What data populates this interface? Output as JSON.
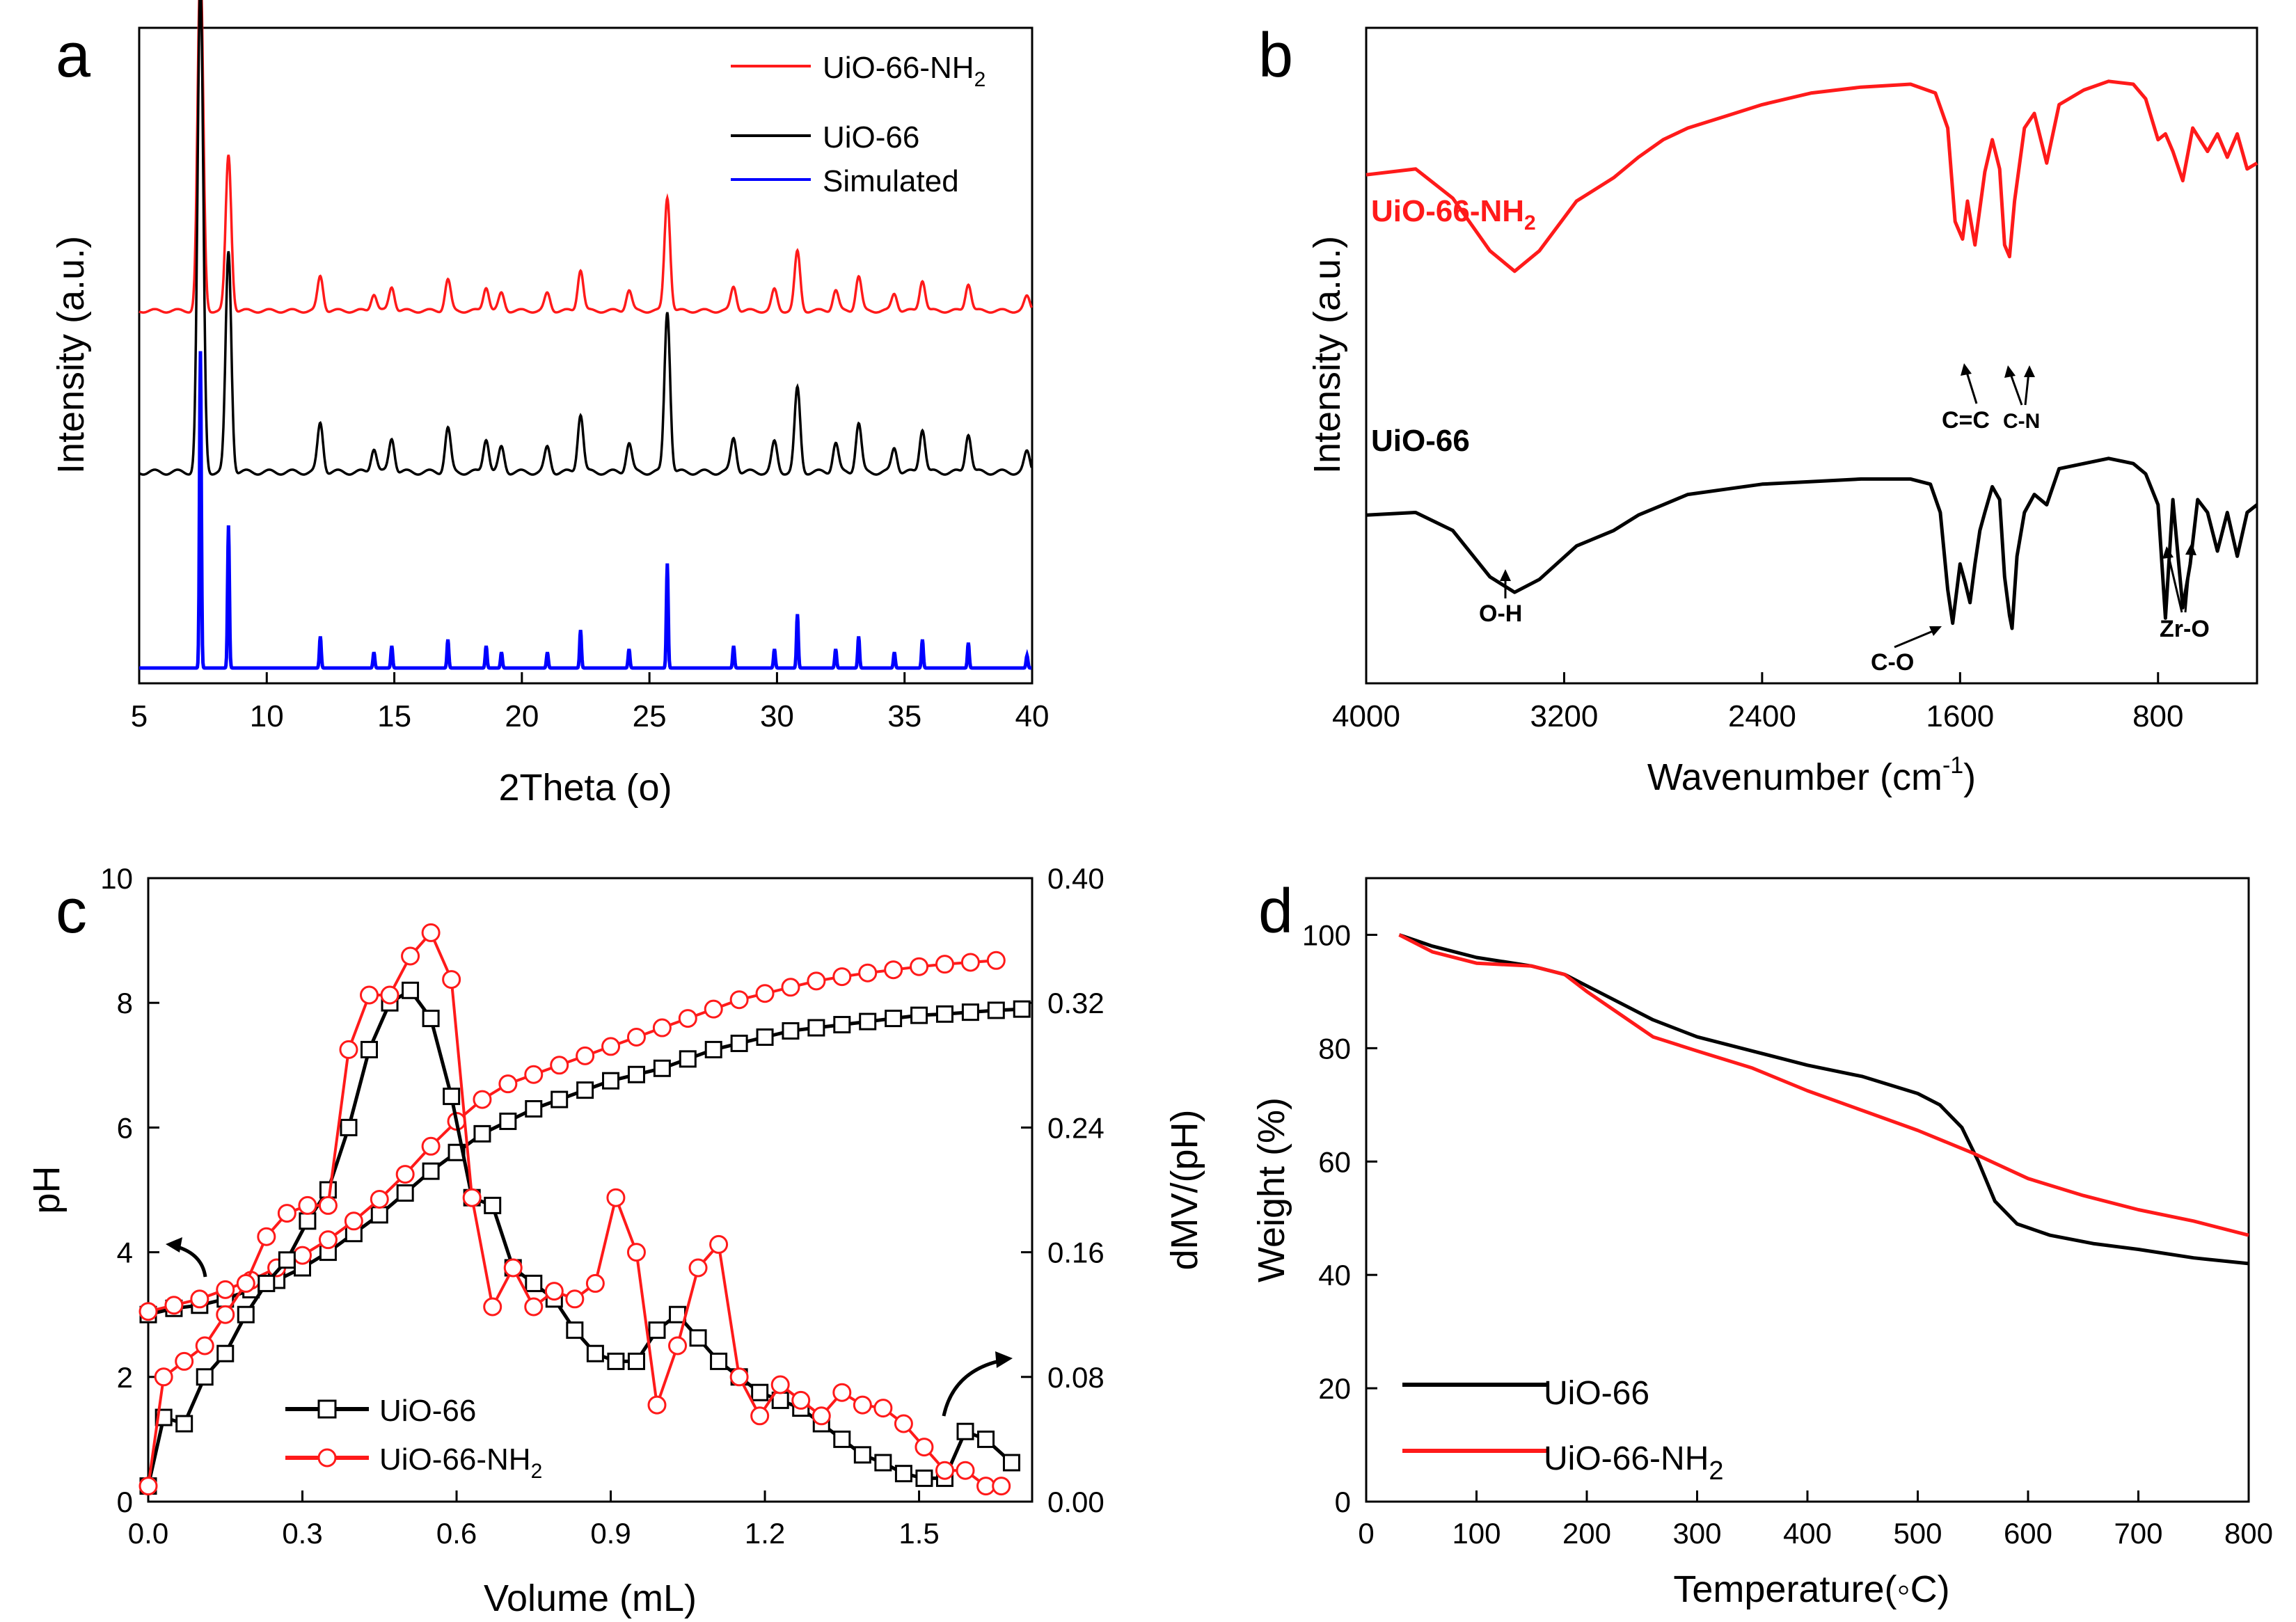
{
  "colors": {
    "red": "#ff1a1a",
    "black": "#000000",
    "blue": "#0000ff"
  },
  "chart_data": [
    {
      "panel": "a",
      "type": "line",
      "xlabel": "2Theta (o)",
      "ylabel": "Intensity (a.u.)",
      "xlim": [
        5,
        40
      ],
      "xticks": [
        5,
        10,
        15,
        20,
        25,
        30,
        35,
        40
      ],
      "legend": {
        "position": "top-right",
        "entries": [
          {
            "label": "UiO-66-NH",
            "sub": "2",
            "color": "#ff1a1a"
          },
          {
            "label": "UiO-66",
            "color": "#000000"
          },
          {
            "label": "Simulated",
            "color": "#0000ff"
          }
        ]
      },
      "peaks": [
        [
          7.4,
          1.0
        ],
        [
          8.5,
          0.45
        ],
        [
          12.1,
          0.1
        ],
        [
          14.2,
          0.05
        ],
        [
          14.9,
          0.07
        ],
        [
          17.1,
          0.09
        ],
        [
          18.6,
          0.07
        ],
        [
          19.2,
          0.05
        ],
        [
          21.0,
          0.05
        ],
        [
          22.3,
          0.12
        ],
        [
          24.2,
          0.06
        ],
        [
          25.7,
          0.33
        ],
        [
          28.3,
          0.07
        ],
        [
          29.9,
          0.06
        ],
        [
          30.8,
          0.17
        ],
        [
          32.3,
          0.06
        ],
        [
          33.2,
          0.1
        ],
        [
          34.6,
          0.05
        ],
        [
          35.7,
          0.09
        ],
        [
          37.5,
          0.08
        ],
        [
          39.8,
          0.04
        ]
      ],
      "series": [
        {
          "name": "UiO-66-NH2",
          "color": "#ff1a1a",
          "scale": 0.6,
          "baseline": 0.62
        },
        {
          "name": "UiO-66",
          "color": "#000000",
          "scale": 0.85,
          "baseline": 0.34
        },
        {
          "name": "Simulated",
          "color": "#0000ff",
          "scale": 0.55,
          "baseline": 0.0
        }
      ]
    },
    {
      "panel": "b",
      "type": "line",
      "xlabel": "Wavenumber (cm",
      "xlabel_sup": "-1",
      "xlabel_end": ")",
      "ylabel": "Intensity (a.u.)",
      "xlim": [
        4000,
        400
      ],
      "xticks": [
        4000,
        3200,
        2400,
        1600,
        800
      ],
      "series": [
        {
          "name": "UiO-66-NH2",
          "label": "UiO-66-NH",
          "sub": "2",
          "color": "#ff1a1a",
          "x": [
            4000,
            3800,
            3650,
            3500,
            3400,
            3300,
            3150,
            3000,
            2900,
            2800,
            2700,
            2550,
            2400,
            2200,
            2000,
            1800,
            1700,
            1650,
            1620,
            1590,
            1570,
            1540,
            1500,
            1470,
            1440,
            1420,
            1400,
            1380,
            1340,
            1300,
            1250,
            1200,
            1100,
            1000,
            900,
            850,
            800,
            770,
            740,
            700,
            660,
            600,
            560,
            520,
            480,
            440,
            400
          ],
          "y": [
            64,
            66,
            56,
            38,
            31,
            38,
            55,
            63,
            70,
            76,
            80,
            84,
            88,
            92,
            94,
            95,
            92,
            80,
            48,
            42,
            55,
            40,
            65,
            76,
            66,
            40,
            36,
            55,
            80,
            85,
            68,
            88,
            93,
            96,
            95,
            90,
            76,
            78,
            72,
            62,
            80,
            72,
            78,
            70,
            78,
            66,
            68
          ]
        },
        {
          "name": "UiO-66",
          "label": "UiO-66",
          "color": "#000000",
          "x": [
            4000,
            3800,
            3650,
            3500,
            3400,
            3300,
            3150,
            3000,
            2900,
            2800,
            2700,
            2550,
            2400,
            2200,
            2000,
            1800,
            1720,
            1680,
            1650,
            1630,
            1600,
            1580,
            1560,
            1540,
            1520,
            1500,
            1470,
            1440,
            1420,
            1400,
            1390,
            1370,
            1340,
            1300,
            1250,
            1200,
            1100,
            1000,
            900,
            850,
            800,
            770,
            740,
            700,
            670,
            640,
            600,
            560,
            520,
            480,
            440,
            400
          ],
          "y": [
            54,
            55,
            48,
            30,
            24,
            29,
            42,
            48,
            54,
            58,
            62,
            64,
            66,
            67,
            68,
            68,
            66,
            55,
            25,
            12,
            35,
            28,
            20,
            35,
            48,
            55,
            65,
            60,
            30,
            15,
            10,
            38,
            55,
            62,
            58,
            72,
            74,
            76,
            74,
            70,
            58,
            14,
            60,
            18,
            35,
            60,
            55,
            40,
            55,
            38,
            55,
            58
          ]
        }
      ],
      "annotations": [
        "O-H",
        "C-O",
        "C=C",
        "C-N",
        "Zr-O"
      ]
    },
    {
      "panel": "c",
      "type": "line",
      "xlabel": "Volume (mL)",
      "ylabel": "pH",
      "ylabel_right": "dMV/(pH)",
      "xlim": [
        0,
        1.72
      ],
      "ylim": [
        0,
        10
      ],
      "ylim_right": [
        0,
        0.4
      ],
      "xticks": [
        "0.0",
        "0.3",
        "0.6",
        "0.9",
        "1.2",
        "1.5"
      ],
      "yticks": [
        "0",
        "2",
        "4",
        "6",
        "8",
        "10"
      ],
      "yticks_right": [
        "0.00",
        "0.08",
        "0.16",
        "0.24",
        "0.32",
        "0.40"
      ],
      "legend": {
        "position": "bottom-left",
        "entries": [
          {
            "label": "UiO-66",
            "color": "#000000"
          },
          {
            "label": "UiO-66-NH",
            "sub": "2",
            "color": "#ff1a1a"
          }
        ]
      },
      "series": [
        {
          "name": "UiO-66 pH",
          "axis": "left",
          "color": "#000000",
          "marker": "square",
          "x": [
            0.0,
            0.05,
            0.1,
            0.15,
            0.2,
            0.25,
            0.3,
            0.35,
            0.4,
            0.45,
            0.5,
            0.55,
            0.6,
            0.65,
            0.7,
            0.75,
            0.8,
            0.85,
            0.9,
            0.95,
            1.0,
            1.05,
            1.1,
            1.15,
            1.2,
            1.25,
            1.3,
            1.35,
            1.4,
            1.45,
            1.5,
            1.55,
            1.6,
            1.65,
            1.7
          ],
          "y": [
            3.0,
            3.1,
            3.15,
            3.25,
            3.4,
            3.55,
            3.75,
            4.0,
            4.3,
            4.6,
            4.95,
            5.3,
            5.6,
            5.9,
            6.1,
            6.3,
            6.45,
            6.6,
            6.75,
            6.85,
            6.95,
            7.1,
            7.25,
            7.35,
            7.45,
            7.55,
            7.6,
            7.65,
            7.7,
            7.75,
            7.8,
            7.82,
            7.85,
            7.88,
            7.9
          ]
        },
        {
          "name": "UiO-66-NH2 pH",
          "axis": "left",
          "color": "#ff1a1a",
          "marker": "circle",
          "x": [
            0.0,
            0.05,
            0.1,
            0.15,
            0.2,
            0.25,
            0.3,
            0.35,
            0.4,
            0.45,
            0.5,
            0.55,
            0.6,
            0.65,
            0.7,
            0.75,
            0.8,
            0.85,
            0.9,
            0.95,
            1.0,
            1.05,
            1.1,
            1.15,
            1.2,
            1.25,
            1.3,
            1.35,
            1.4,
            1.45,
            1.5,
            1.55,
            1.6,
            1.65
          ],
          "y": [
            3.05,
            3.15,
            3.25,
            3.4,
            3.55,
            3.75,
            3.95,
            4.2,
            4.5,
            4.85,
            5.25,
            5.7,
            6.1,
            6.45,
            6.7,
            6.85,
            7.0,
            7.15,
            7.3,
            7.45,
            7.6,
            7.75,
            7.9,
            8.05,
            8.15,
            8.25,
            8.35,
            8.42,
            8.48,
            8.53,
            8.58,
            8.62,
            8.65,
            8.68
          ]
        },
        {
          "name": "UiO-66 dMV/(pH)",
          "axis": "right",
          "color": "#000000",
          "marker": "square",
          "x": [
            0.0,
            0.03,
            0.07,
            0.11,
            0.15,
            0.19,
            0.23,
            0.27,
            0.31,
            0.35,
            0.39,
            0.43,
            0.47,
            0.51,
            0.55,
            0.59,
            0.63,
            0.67,
            0.71,
            0.75,
            0.79,
            0.83,
            0.87,
            0.91,
            0.95,
            0.99,
            1.03,
            1.07,
            1.11,
            1.15,
            1.19,
            1.23,
            1.27,
            1.31,
            1.35,
            1.39,
            1.43,
            1.47,
            1.51,
            1.55,
            1.59,
            1.63,
            1.68
          ],
          "y": [
            0.01,
            0.054,
            0.05,
            0.08,
            0.095,
            0.12,
            0.14,
            0.155,
            0.18,
            0.2,
            0.24,
            0.29,
            0.32,
            0.328,
            0.31,
            0.26,
            0.195,
            0.19,
            0.15,
            0.14,
            0.13,
            0.11,
            0.095,
            0.09,
            0.09,
            0.11,
            0.12,
            0.105,
            0.09,
            0.08,
            0.07,
            0.065,
            0.06,
            0.05,
            0.04,
            0.03,
            0.025,
            0.018,
            0.015,
            0.015,
            0.045,
            0.04,
            0.025
          ]
        },
        {
          "name": "UiO-66-NH2 dMV/(pH)",
          "axis": "right",
          "color": "#ff1a1a",
          "marker": "circle",
          "x": [
            0.0,
            0.03,
            0.07,
            0.11,
            0.15,
            0.19,
            0.23,
            0.27,
            0.31,
            0.35,
            0.39,
            0.43,
            0.47,
            0.51,
            0.55,
            0.59,
            0.63,
            0.67,
            0.71,
            0.75,
            0.79,
            0.83,
            0.87,
            0.91,
            0.95,
            0.99,
            1.03,
            1.07,
            1.11,
            1.15,
            1.19,
            1.23,
            1.27,
            1.31,
            1.35,
            1.39,
            1.43,
            1.47,
            1.51,
            1.55,
            1.59,
            1.63,
            1.66
          ],
          "y": [
            0.01,
            0.08,
            0.09,
            0.1,
            0.12,
            0.14,
            0.17,
            0.185,
            0.19,
            0.19,
            0.29,
            0.325,
            0.325,
            0.35,
            0.365,
            0.335,
            0.195,
            0.125,
            0.15,
            0.125,
            0.135,
            0.13,
            0.14,
            0.195,
            0.16,
            0.062,
            0.1,
            0.15,
            0.165,
            0.08,
            0.055,
            0.075,
            0.065,
            0.055,
            0.07,
            0.062,
            0.06,
            0.05,
            0.035,
            0.02,
            0.02,
            0.01,
            0.01
          ]
        }
      ],
      "extra_ticks": [
        "10",
        "8",
        "6",
        "4",
        "2"
      ]
    },
    {
      "panel": "d",
      "type": "line",
      "xlabel": "Temperature(◦C)",
      "ylabel": "Weight (%)",
      "xlim": [
        0,
        800
      ],
      "ylim": [
        0,
        110
      ],
      "xticks": [
        "0",
        "100",
        "200",
        "300",
        "400",
        "500",
        "600",
        "700",
        "800"
      ],
      "yticks": [
        "0",
        "20",
        "40",
        "60",
        "80",
        "100"
      ],
      "legend": {
        "position": "bottom-left",
        "entries": [
          {
            "label": "UiO-66",
            "color": "#000000"
          },
          {
            "label": "UiO-66-NH",
            "sub": "2",
            "color": "#ff1a1a"
          }
        ]
      },
      "series": [
        {
          "name": "UiO-66",
          "color": "#000000",
          "x": [
            30,
            60,
            100,
            150,
            180,
            200,
            230,
            260,
            300,
            350,
            400,
            450,
            500,
            520,
            540,
            555,
            570,
            590,
            620,
            660,
            700,
            750,
            800
          ],
          "y": [
            100,
            98,
            96,
            94.5,
            93,
            91,
            88,
            85,
            82,
            79.5,
            77,
            75,
            72,
            70,
            66,
            60,
            53,
            49,
            47,
            45.5,
            44.5,
            43,
            42
          ]
        },
        {
          "name": "UiO-66-NH2",
          "color": "#ff1a1a",
          "x": [
            30,
            60,
            100,
            150,
            180,
            200,
            230,
            260,
            300,
            350,
            400,
            450,
            500,
            550,
            600,
            650,
            700,
            750,
            800
          ],
          "y": [
            100,
            97,
            95,
            94.5,
            93,
            90,
            86,
            82,
            79.5,
            76.5,
            72.5,
            69,
            65.5,
            61.5,
            57,
            54,
            51.5,
            49.5,
            47
          ]
        }
      ]
    }
  ],
  "panel_labels": [
    "a",
    "b",
    "c",
    "d"
  ]
}
